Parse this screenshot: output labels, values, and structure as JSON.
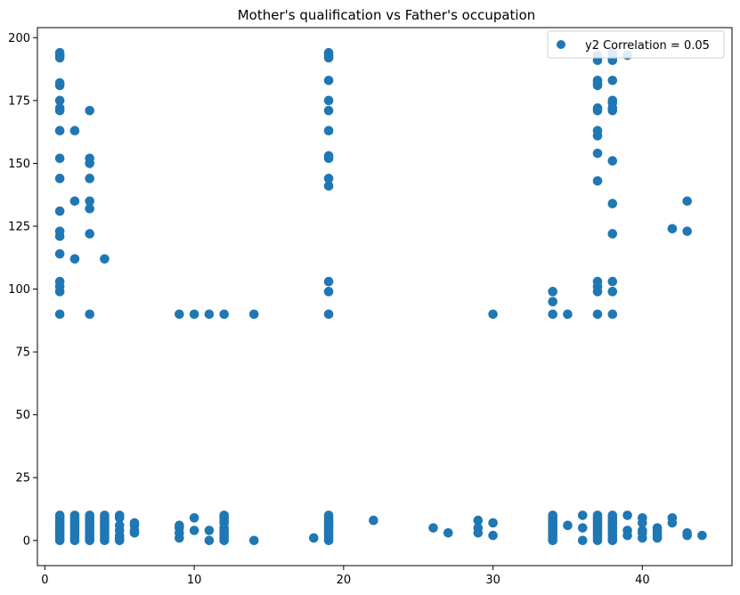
{
  "chart_data": {
    "type": "scatter",
    "title": "Mother's qualification vs Father's occupation",
    "xlabel": "",
    "ylabel": "",
    "xlim": [
      -0.5,
      46
    ],
    "ylim": [
      -10,
      204
    ],
    "x_ticks": [
      0,
      10,
      20,
      30,
      40
    ],
    "y_ticks": [
      0,
      25,
      50,
      75,
      100,
      125,
      150,
      175,
      200
    ],
    "grid": false,
    "legend_position": "top-right",
    "marker_color": "#1f77b4",
    "series": [
      {
        "name": "y2 Correlation = 0.05",
        "points": [
          [
            1,
            0
          ],
          [
            1,
            1
          ],
          [
            1,
            2
          ],
          [
            1,
            3
          ],
          [
            1,
            4
          ],
          [
            1,
            5
          ],
          [
            1,
            6
          ],
          [
            1,
            7
          ],
          [
            1,
            8
          ],
          [
            1,
            9
          ],
          [
            1,
            10
          ],
          [
            1,
            90
          ],
          [
            1,
            99
          ],
          [
            1,
            101
          ],
          [
            1,
            103
          ],
          [
            1,
            114
          ],
          [
            1,
            121
          ],
          [
            1,
            123
          ],
          [
            1,
            131
          ],
          [
            1,
            144
          ],
          [
            1,
            152
          ],
          [
            1,
            163
          ],
          [
            1,
            171
          ],
          [
            1,
            172
          ],
          [
            1,
            175
          ],
          [
            1,
            181
          ],
          [
            1,
            182
          ],
          [
            1,
            192
          ],
          [
            1,
            193
          ],
          [
            1,
            194
          ],
          [
            2,
            0
          ],
          [
            2,
            1
          ],
          [
            2,
            2
          ],
          [
            2,
            3
          ],
          [
            2,
            4
          ],
          [
            2,
            5
          ],
          [
            2,
            6
          ],
          [
            2,
            7
          ],
          [
            2,
            8
          ],
          [
            2,
            9
          ],
          [
            2,
            10
          ],
          [
            2,
            112
          ],
          [
            2,
            135
          ],
          [
            2,
            163
          ],
          [
            3,
            0
          ],
          [
            3,
            1
          ],
          [
            3,
            2
          ],
          [
            3,
            3
          ],
          [
            3,
            4
          ],
          [
            3,
            5
          ],
          [
            3,
            6
          ],
          [
            3,
            7
          ],
          [
            3,
            8
          ],
          [
            3,
            9
          ],
          [
            3,
            10
          ],
          [
            3,
            90
          ],
          [
            3,
            122
          ],
          [
            3,
            132
          ],
          [
            3,
            135
          ],
          [
            3,
            144
          ],
          [
            3,
            150
          ],
          [
            3,
            152
          ],
          [
            3,
            171
          ],
          [
            4,
            0
          ],
          [
            4,
            1
          ],
          [
            4,
            2
          ],
          [
            4,
            3
          ],
          [
            4,
            4
          ],
          [
            4,
            5
          ],
          [
            4,
            6
          ],
          [
            4,
            7
          ],
          [
            4,
            8
          ],
          [
            4,
            9
          ],
          [
            4,
            10
          ],
          [
            4,
            112
          ],
          [
            5,
            0
          ],
          [
            5,
            1
          ],
          [
            5,
            2
          ],
          [
            5,
            4
          ],
          [
            5,
            6
          ],
          [
            5,
            9
          ],
          [
            5,
            10
          ],
          [
            6,
            3
          ],
          [
            6,
            4
          ],
          [
            6,
            6
          ],
          [
            6,
            7
          ],
          [
            9,
            1
          ],
          [
            9,
            3
          ],
          [
            9,
            5
          ],
          [
            9,
            6
          ],
          [
            9,
            90
          ],
          [
            10,
            4
          ],
          [
            10,
            9
          ],
          [
            10,
            90
          ],
          [
            11,
            0
          ],
          [
            11,
            4
          ],
          [
            11,
            90
          ],
          [
            12,
            0
          ],
          [
            12,
            1
          ],
          [
            12,
            2
          ],
          [
            12,
            3
          ],
          [
            12,
            4
          ],
          [
            12,
            5
          ],
          [
            12,
            7
          ],
          [
            12,
            8
          ],
          [
            12,
            9
          ],
          [
            12,
            10
          ],
          [
            12,
            90
          ],
          [
            14,
            0
          ],
          [
            14,
            90
          ],
          [
            18,
            1
          ],
          [
            19,
            0
          ],
          [
            19,
            1
          ],
          [
            19,
            2
          ],
          [
            19,
            3
          ],
          [
            19,
            4
          ],
          [
            19,
            5
          ],
          [
            19,
            6
          ],
          [
            19,
            7
          ],
          [
            19,
            8
          ],
          [
            19,
            9
          ],
          [
            19,
            10
          ],
          [
            19,
            90
          ],
          [
            19,
            99
          ],
          [
            19,
            103
          ],
          [
            19,
            141
          ],
          [
            19,
            144
          ],
          [
            19,
            152
          ],
          [
            19,
            153
          ],
          [
            19,
            163
          ],
          [
            19,
            171
          ],
          [
            19,
            175
          ],
          [
            19,
            183
          ],
          [
            19,
            192
          ],
          [
            19,
            193
          ],
          [
            19,
            194
          ],
          [
            22,
            8
          ],
          [
            26,
            5
          ],
          [
            27,
            3
          ],
          [
            29,
            3
          ],
          [
            29,
            5
          ],
          [
            29,
            8
          ],
          [
            30,
            2
          ],
          [
            30,
            7
          ],
          [
            30,
            90
          ],
          [
            34,
            0
          ],
          [
            34,
            1
          ],
          [
            34,
            2
          ],
          [
            34,
            3
          ],
          [
            34,
            4
          ],
          [
            34,
            5
          ],
          [
            34,
            6
          ],
          [
            34,
            7
          ],
          [
            34,
            8
          ],
          [
            34,
            9
          ],
          [
            34,
            10
          ],
          [
            34,
            90
          ],
          [
            34,
            95
          ],
          [
            34,
            99
          ],
          [
            35,
            6
          ],
          [
            35,
            90
          ],
          [
            36,
            0
          ],
          [
            36,
            5
          ],
          [
            36,
            10
          ],
          [
            37,
            0
          ],
          [
            37,
            1
          ],
          [
            37,
            2
          ],
          [
            37,
            3
          ],
          [
            37,
            4
          ],
          [
            37,
            5
          ],
          [
            37,
            6
          ],
          [
            37,
            7
          ],
          [
            37,
            8
          ],
          [
            37,
            9
          ],
          [
            37,
            10
          ],
          [
            37,
            90
          ],
          [
            37,
            99
          ],
          [
            37,
            101
          ],
          [
            37,
            103
          ],
          [
            37,
            143
          ],
          [
            37,
            154
          ],
          [
            37,
            161
          ],
          [
            37,
            163
          ],
          [
            37,
            171
          ],
          [
            37,
            172
          ],
          [
            37,
            181
          ],
          [
            37,
            182
          ],
          [
            37,
            183
          ],
          [
            37,
            191
          ],
          [
            37,
            193
          ],
          [
            38,
            0
          ],
          [
            38,
            1
          ],
          [
            38,
            2
          ],
          [
            38,
            3
          ],
          [
            38,
            4
          ],
          [
            38,
            5
          ],
          [
            38,
            6
          ],
          [
            38,
            7
          ],
          [
            38,
            8
          ],
          [
            38,
            9
          ],
          [
            38,
            10
          ],
          [
            38,
            90
          ],
          [
            38,
            99
          ],
          [
            38,
            103
          ],
          [
            38,
            122
          ],
          [
            38,
            134
          ],
          [
            38,
            151
          ],
          [
            38,
            171
          ],
          [
            38,
            172
          ],
          [
            38,
            174
          ],
          [
            38,
            175
          ],
          [
            38,
            183
          ],
          [
            38,
            191
          ],
          [
            38,
            192
          ],
          [
            38,
            193
          ],
          [
            38,
            194
          ],
          [
            39,
            2
          ],
          [
            39,
            4
          ],
          [
            39,
            10
          ],
          [
            39,
            193
          ],
          [
            40,
            1
          ],
          [
            40,
            3
          ],
          [
            40,
            4
          ],
          [
            40,
            7
          ],
          [
            40,
            9
          ],
          [
            41,
            1
          ],
          [
            41,
            2
          ],
          [
            41,
            3
          ],
          [
            41,
            4
          ],
          [
            41,
            5
          ],
          [
            42,
            7
          ],
          [
            42,
            9
          ],
          [
            42,
            124
          ],
          [
            43,
            2
          ],
          [
            43,
            3
          ],
          [
            43,
            123
          ],
          [
            43,
            135
          ],
          [
            44,
            2
          ]
        ]
      }
    ]
  }
}
